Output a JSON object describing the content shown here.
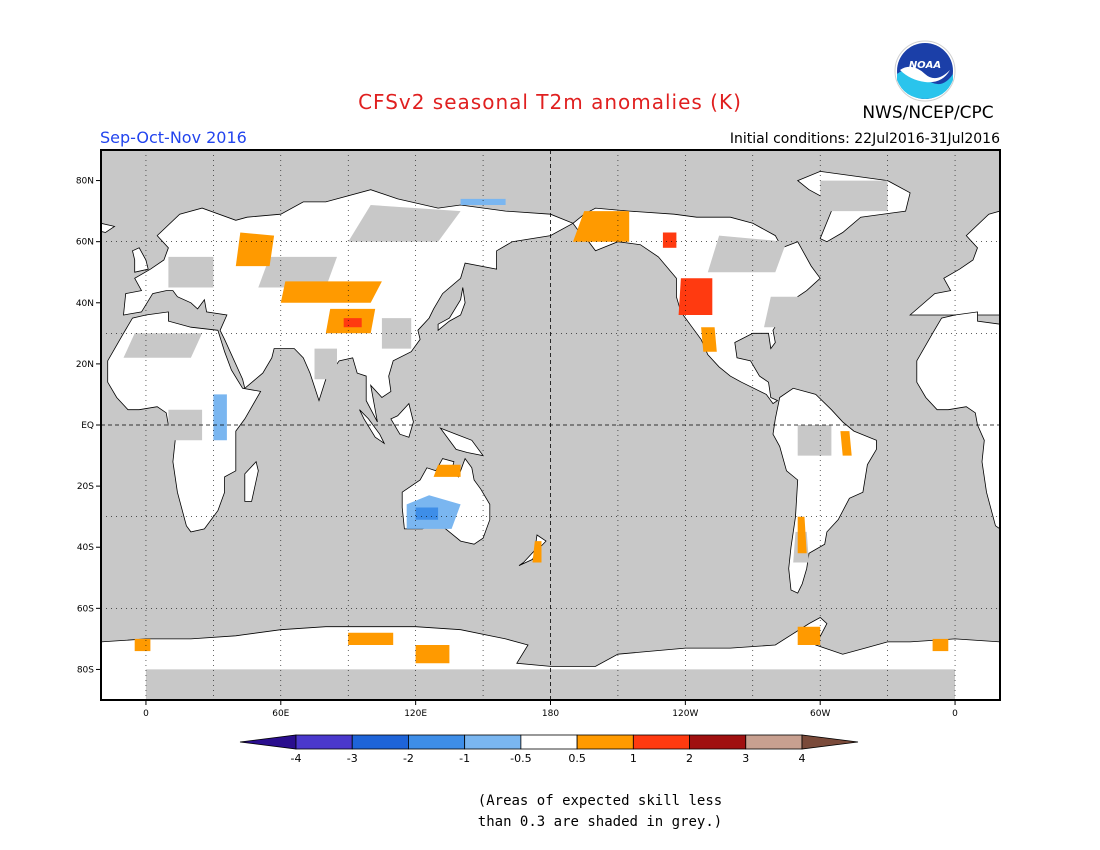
{
  "title": "CFSv2 seasonal T2m anomalies (K)",
  "agency": "NWS/NCEP/CPC",
  "logo_text": "NOAA",
  "season": "Sep-Oct-Nov 2016",
  "initial_conditions": "Initial conditions: 22Jul2016-31Jul2016",
  "map": {
    "projection": "equirectangular, Pacific-centered",
    "lon_range": [
      -20,
      380
    ],
    "lat_range": [
      -90,
      90
    ],
    "grid": "dotted every 30 degrees; dashed equator and 180 meridian",
    "lat_ticks": [
      {
        "lat": 80,
        "label": "80N"
      },
      {
        "lat": 60,
        "label": "60N"
      },
      {
        "lat": 40,
        "label": "40N"
      },
      {
        "lat": 20,
        "label": "20N"
      },
      {
        "lat": 0,
        "label": "EQ"
      },
      {
        "lat": -20,
        "label": "20S"
      },
      {
        "lat": -40,
        "label": "40S"
      },
      {
        "lat": -60,
        "label": "60S"
      },
      {
        "lat": -80,
        "label": "80S"
      }
    ],
    "lon_ticks": [
      {
        "lon": 0,
        "label": "0"
      },
      {
        "lon": 60,
        "label": "60E"
      },
      {
        "lon": 120,
        "label": "120E"
      },
      {
        "lon": 180,
        "label": "180"
      },
      {
        "lon": 240,
        "label": "120W"
      },
      {
        "lon": 300,
        "label": "60W"
      },
      {
        "lon": 360,
        "label": "0"
      }
    ],
    "colors": {
      "ocean_low_skill": "#c8c8c8",
      "land_neutral": "#ffffff",
      "coastline": "#000000"
    },
    "warm_anomaly_regions": [
      {
        "name": "Western Russia",
        "value": 0.7
      },
      {
        "name": "Central Asia",
        "value": 0.8
      },
      {
        "name": "Tibetan Plateau",
        "value": 1.3
      },
      {
        "name": "Alaska",
        "value": 0.8
      },
      {
        "name": "Western Canada",
        "value": 1.2
      },
      {
        "name": "Western USA",
        "value": 1.5
      },
      {
        "name": "Northern Australia",
        "value": 0.7
      },
      {
        "name": "Brazil",
        "value": 0.7
      },
      {
        "name": "Argentina",
        "value": 0.7
      },
      {
        "name": "Antarctic coast",
        "value": 0.7
      }
    ],
    "cold_anomaly_regions": [
      {
        "name": "Australia interior",
        "value": -0.8
      },
      {
        "name": "East Africa",
        "value": -0.7
      },
      {
        "name": "Siberian Arctic coast",
        "value": -0.7
      }
    ]
  },
  "colorbar": {
    "levels": [
      "-4",
      "-3",
      "-2",
      "-1",
      "-0.5",
      "0.5",
      "1",
      "2",
      "3",
      "4"
    ],
    "colors": [
      "#2a0e8e",
      "#4a38cc",
      "#1e64d8",
      "#3e8ee8",
      "#7ab6f0",
      "#ffffff",
      "#ff9a00",
      "#ff3a10",
      "#a01010",
      "#c8a090",
      "#7a4a3a"
    ]
  },
  "footnote": {
    "line1": "(Areas of expected skill less",
    "line2": "than 0.3 are shaded in grey.)"
  }
}
